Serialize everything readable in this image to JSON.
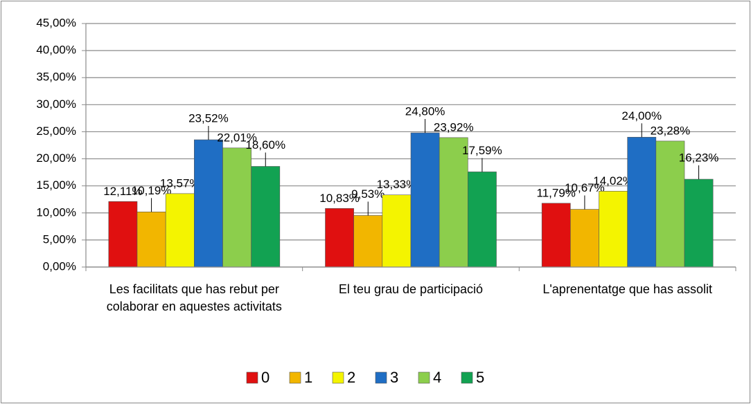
{
  "chart_data": {
    "type": "bar",
    "categories": [
      "Les facilitats que has rebut per colaborar en aquestes activitats",
      "El teu grau de participació",
      "L'aprenentatge que has assolit"
    ],
    "series": [
      {
        "name": "0",
        "color": "#e01010",
        "values": [
          12.11,
          10.83,
          11.79
        ],
        "value_labels": [
          "12,11%",
          "10,83%",
          "11,79%"
        ]
      },
      {
        "name": "1",
        "color": "#f2b600",
        "values": [
          10.19,
          9.53,
          10.67
        ],
        "value_labels": [
          "10,19%",
          "9,53%",
          "10,67%"
        ]
      },
      {
        "name": "2",
        "color": "#f4f400",
        "values": [
          13.57,
          13.33,
          14.02
        ],
        "value_labels": [
          "13,57%",
          "13,33%",
          "14,02%"
        ]
      },
      {
        "name": "3",
        "color": "#1f6ec4",
        "values": [
          23.52,
          24.8,
          24.0
        ],
        "value_labels": [
          "23,52%",
          "24,80%",
          "24,00%"
        ]
      },
      {
        "name": "4",
        "color": "#8cce4c",
        "values": [
          22.01,
          23.92,
          23.28
        ],
        "value_labels": [
          "22,01%",
          "23,92%",
          "23,28%"
        ]
      },
      {
        "name": "5",
        "color": "#12a252",
        "values": [
          18.6,
          17.59,
          16.23
        ],
        "value_labels": [
          "18,60%",
          "17,59%",
          "16,23%"
        ]
      }
    ],
    "ylim": [
      0,
      45
    ],
    "yticks": [
      {
        "value": 0,
        "label": "0,00%"
      },
      {
        "value": 5,
        "label": "5,00%"
      },
      {
        "value": 10,
        "label": "10,00%"
      },
      {
        "value": 15,
        "label": "15,00%"
      },
      {
        "value": 20,
        "label": "20,00%"
      },
      {
        "value": 25,
        "label": "25,00%"
      },
      {
        "value": 30,
        "label": "30,00%"
      },
      {
        "value": 35,
        "label": "35,00%"
      },
      {
        "value": 40,
        "label": "40,00%"
      },
      {
        "value": 45,
        "label": "45,00%"
      }
    ],
    "grid": true,
    "legend": "bottom"
  }
}
